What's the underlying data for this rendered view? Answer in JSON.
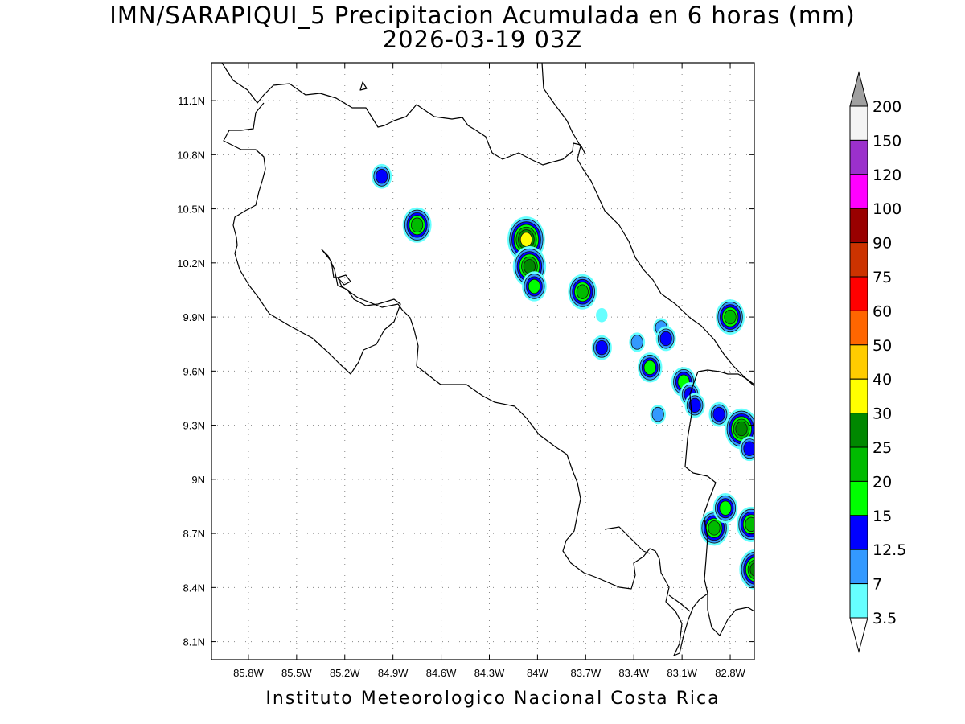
{
  "title": {
    "line1": "IMN/SARAPIQUI_5 Precipitacion Acumulada en 6 horas (mm)",
    "line2": "2026-03-19 03Z"
  },
  "credit": "Instituto Meteorologico Nacional Costa Rica",
  "map": {
    "lon_range": [
      -86.03,
      -82.65
    ],
    "lat_range": [
      8.0,
      11.31
    ],
    "x_ticks": [
      "85.8W",
      "85.5W",
      "85.2W",
      "84.9W",
      "84.6W",
      "84.3W",
      "84W",
      "83.7W",
      "83.4W",
      "83.1W",
      "82.8W"
    ],
    "x_tick_values": [
      -85.8,
      -85.5,
      -85.2,
      -84.9,
      -84.6,
      -84.3,
      -84.0,
      -83.7,
      -83.4,
      -83.1,
      -82.8
    ],
    "y_ticks": [
      "11.1N",
      "10.8N",
      "10.5N",
      "10.2N",
      "9.9N",
      "9.6N",
      "9.3N",
      "9N",
      "8.7N",
      "8.4N",
      "8.1N"
    ],
    "y_tick_values": [
      11.1,
      10.8,
      10.5,
      10.2,
      9.9,
      9.6,
      9.3,
      9.0,
      8.7,
      8.4,
      8.1
    ],
    "grid": "dotted"
  },
  "colorbar": {
    "labels": [
      "200",
      "150",
      "120",
      "100",
      "90",
      "75",
      "60",
      "50",
      "40",
      "30",
      "25",
      "20",
      "15",
      "12.5",
      "7",
      "3.5"
    ],
    "colors": [
      "#a0a0a0",
      "#f4f4f4",
      "#9b30cc",
      "#ff00ff",
      "#990000",
      "#cc3300",
      "#ff0000",
      "#ff6600",
      "#ffcc00",
      "#ffff00",
      "#008800",
      "#00bb00",
      "#00ff00",
      "#0000ff",
      "#3399ff",
      "#66ffff",
      "#ffffff"
    ]
  },
  "precip_cells": [
    {
      "lon": -84.97,
      "lat": 10.68,
      "level": 3
    },
    {
      "lon": -84.75,
      "lat": 10.41,
      "level": 5
    },
    {
      "lon": -84.07,
      "lat": 10.33,
      "level": 7
    },
    {
      "lon": -84.05,
      "lat": 10.18,
      "level": 6
    },
    {
      "lon": -84.02,
      "lat": 10.07,
      "level": 4
    },
    {
      "lon": -83.72,
      "lat": 10.04,
      "level": 5
    },
    {
      "lon": -83.6,
      "lat": 9.73,
      "level": 3
    },
    {
      "lon": -83.3,
      "lat": 9.62,
      "level": 4
    },
    {
      "lon": -83.25,
      "lat": 9.36,
      "level": 2
    },
    {
      "lon": -83.09,
      "lat": 9.54,
      "level": 4
    },
    {
      "lon": -83.05,
      "lat": 9.47,
      "level": 3
    },
    {
      "lon": -83.02,
      "lat": 9.41,
      "level": 3
    },
    {
      "lon": -82.8,
      "lat": 9.9,
      "level": 5
    },
    {
      "lon": -82.87,
      "lat": 9.36,
      "level": 3
    },
    {
      "lon": -82.73,
      "lat": 9.28,
      "level": 6
    },
    {
      "lon": -82.68,
      "lat": 9.17,
      "level": 3
    },
    {
      "lon": -82.9,
      "lat": 8.73,
      "level": 5
    },
    {
      "lon": -82.83,
      "lat": 8.84,
      "level": 4
    },
    {
      "lon": -82.67,
      "lat": 8.75,
      "level": 5
    },
    {
      "lon": -82.64,
      "lat": 8.5,
      "level": 6
    },
    {
      "lon": -83.23,
      "lat": 9.84,
      "level": 2
    },
    {
      "lon": -83.2,
      "lat": 9.78,
      "level": 3
    },
    {
      "lon": -83.38,
      "lat": 9.76,
      "level": 2
    },
    {
      "lon": -83.6,
      "lat": 9.91,
      "level": 1
    }
  ]
}
